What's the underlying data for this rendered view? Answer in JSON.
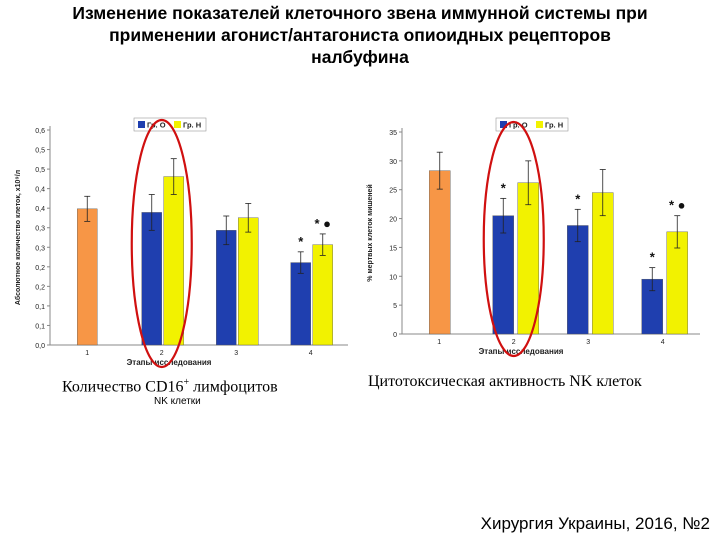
{
  "slide": {
    "title_line1": "Изменение показателей клеточного звена иммунной системы при",
    "title_line2": "применении агонист/антагониста опиоидных рецепторов",
    "title_line3": "налбуфина",
    "caption_left_text": "Количество CD16",
    "caption_left_sup": "+",
    "caption_left_tail": " лимфоцитов",
    "subcaption_left": "NK клетки",
    "caption_right": "Цитотоксическая активность NK клеток",
    "source": "Хирургия Украины, 2016, №2"
  },
  "colors": {
    "control": "#F79646",
    "group_o": "#1F3FAF",
    "group_n": "#F2F200",
    "highlight_ellipse": "#D01010"
  },
  "chart_data": [
    {
      "type": "bar",
      "ylabel": "Абсолютное количество клеток, х10⁹/л",
      "xlabel": "Этапы исследования",
      "ylim": [
        0,
        0.6
      ],
      "yticks": [
        "0,0",
        "0,1",
        "0,1",
        "0,2",
        "0,2",
        "0,3",
        "0,3",
        "0,4",
        "0,4",
        "0,5",
        "0,5",
        "0,6"
      ],
      "categories": [
        "1",
        "2",
        "3",
        "4"
      ],
      "legend": [
        "Гр. О",
        "Гр. Н"
      ],
      "legend_position": "top",
      "bars": [
        {
          "stage": "1",
          "group": "control",
          "value": 0.38,
          "err": 0.035
        },
        {
          "stage": "2",
          "group": "O",
          "value": 0.37,
          "err": 0.05
        },
        {
          "stage": "2",
          "group": "H",
          "value": 0.47,
          "err": 0.05
        },
        {
          "stage": "3",
          "group": "O",
          "value": 0.32,
          "err": 0.04
        },
        {
          "stage": "3",
          "group": "H",
          "value": 0.355,
          "err": 0.04
        },
        {
          "stage": "4",
          "group": "O",
          "value": 0.23,
          "err": 0.03
        },
        {
          "stage": "4",
          "group": "H",
          "value": 0.28,
          "err": 0.03
        }
      ],
      "annotations": [
        {
          "stage": "4",
          "group": "O",
          "text": "*"
        },
        {
          "stage": "4",
          "group": "H",
          "text": "* ●"
        }
      ],
      "highlight_stage": "2"
    },
    {
      "type": "bar",
      "ylabel": "% мертвых клеток мишеней",
      "xlabel": "Этапы исследования",
      "ylim": [
        0,
        35
      ],
      "yticks": [
        "0",
        "5",
        "10",
        "15",
        "20",
        "25",
        "30",
        "35"
      ],
      "categories": [
        "1",
        "2",
        "3",
        "4"
      ],
      "legend": [
        "Гр. О",
        "Гр. Н"
      ],
      "legend_position": "top",
      "bars": [
        {
          "stage": "1",
          "group": "control",
          "value": 28.3,
          "err": 3.2
        },
        {
          "stage": "2",
          "group": "O",
          "value": 20.5,
          "err": 3.0
        },
        {
          "stage": "2",
          "group": "H",
          "value": 26.2,
          "err": 3.8
        },
        {
          "stage": "3",
          "group": "O",
          "value": 18.8,
          "err": 2.8
        },
        {
          "stage": "3",
          "group": "H",
          "value": 24.5,
          "err": 4.0
        },
        {
          "stage": "4",
          "group": "O",
          "value": 9.5,
          "err": 2.0
        },
        {
          "stage": "4",
          "group": "H",
          "value": 17.7,
          "err": 2.8
        }
      ],
      "annotations": [
        {
          "stage": "2",
          "group": "O",
          "text": "*"
        },
        {
          "stage": "3",
          "group": "O",
          "text": "*"
        },
        {
          "stage": "4",
          "group": "O",
          "text": "*"
        },
        {
          "stage": "4",
          "group": "H",
          "text": "* ●"
        }
      ],
      "highlight_stage": "2"
    }
  ]
}
